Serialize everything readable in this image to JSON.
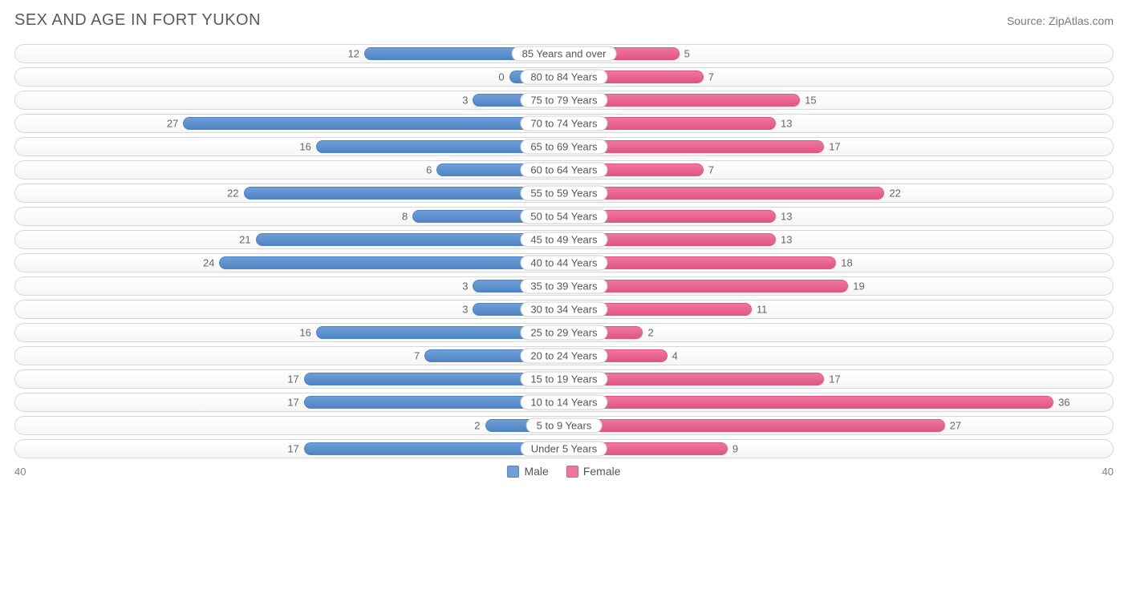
{
  "title": "SEX AND AGE IN FORT YUKON",
  "source_prefix": "Source: ",
  "source_name": "ZipAtlas.com",
  "chart": {
    "type": "population-pyramid",
    "axis_max": 40,
    "axis_left_label": "40",
    "axis_right_label": "40",
    "male_color": "#6f9fd8",
    "male_border": "#4f84c4",
    "female_color": "#ef779f",
    "female_border": "#e25585",
    "row_border": "#d8d8d8",
    "row_bg_top": "#ffffff",
    "row_bg_bottom": "#f6f6f6",
    "text_color": "#555555",
    "value_text_color": "#666666",
    "label_fontsize": 13,
    "title_fontsize": 20,
    "rows": [
      {
        "label": "85 Years and over",
        "male": 12,
        "female": 5
      },
      {
        "label": "80 to 84 Years",
        "male": 0,
        "female": 7
      },
      {
        "label": "75 to 79 Years",
        "male": 3,
        "female": 15
      },
      {
        "label": "70 to 74 Years",
        "male": 27,
        "female": 13
      },
      {
        "label": "65 to 69 Years",
        "male": 16,
        "female": 17
      },
      {
        "label": "60 to 64 Years",
        "male": 6,
        "female": 7
      },
      {
        "label": "55 to 59 Years",
        "male": 22,
        "female": 22
      },
      {
        "label": "50 to 54 Years",
        "male": 8,
        "female": 13
      },
      {
        "label": "45 to 49 Years",
        "male": 21,
        "female": 13
      },
      {
        "label": "40 to 44 Years",
        "male": 24,
        "female": 18
      },
      {
        "label": "35 to 39 Years",
        "male": 3,
        "female": 19
      },
      {
        "label": "30 to 34 Years",
        "male": 3,
        "female": 11
      },
      {
        "label": "25 to 29 Years",
        "male": 16,
        "female": 2
      },
      {
        "label": "20 to 24 Years",
        "male": 7,
        "female": 4
      },
      {
        "label": "15 to 19 Years",
        "male": 17,
        "female": 17
      },
      {
        "label": "10 to 14 Years",
        "male": 17,
        "female": 36
      },
      {
        "label": "5 to 9 Years",
        "male": 2,
        "female": 27
      },
      {
        "label": "Under 5 Years",
        "male": 17,
        "female": 9
      }
    ]
  },
  "legend": {
    "male": "Male",
    "female": "Female"
  }
}
